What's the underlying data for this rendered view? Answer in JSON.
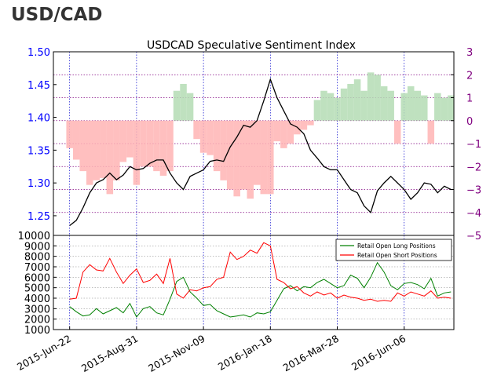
{
  "page_title": "USD/CAD",
  "chart_data": [
    {
      "type": "line",
      "title": "USDCAD Speculative Sentiment Index",
      "x_ticks": [
        "2015-Jun-22",
        "2015-Aug-31",
        "2015-Nov-09",
        "2016-Jan-18",
        "2016-Mar-28",
        "2016-Jun-06"
      ],
      "x_range": [
        "2015-06-05",
        "2016-07-28"
      ],
      "y_left": {
        "label": "",
        "ticks": [
          "1.50",
          "1.45",
          "1.40",
          "1.35",
          "1.30",
          "1.25"
        ],
        "ylim": [
          1.22,
          1.5
        ],
        "color": "#0000ff"
      },
      "y_right": {
        "label": "",
        "ticks": [
          "3",
          "2",
          "1",
          "0",
          "-1",
          "-2",
          "-3",
          "-4",
          "-5"
        ],
        "ylim": [
          -5,
          3
        ],
        "color": "#800080"
      },
      "grid": true,
      "price_series": {
        "name": "",
        "color": "#000000",
        "points": [
          [
            "2015-06-22",
            1.235
          ],
          [
            "2015-06-29",
            1.243
          ],
          [
            "2015-07-06",
            1.262
          ],
          [
            "2015-07-13",
            1.285
          ],
          [
            "2015-07-20",
            1.3
          ],
          [
            "2015-07-27",
            1.305
          ],
          [
            "2015-08-03",
            1.315
          ],
          [
            "2015-08-10",
            1.305
          ],
          [
            "2015-08-17",
            1.312
          ],
          [
            "2015-08-24",
            1.325
          ],
          [
            "2015-08-31",
            1.32
          ],
          [
            "2015-09-07",
            1.322
          ],
          [
            "2015-09-14",
            1.33
          ],
          [
            "2015-09-21",
            1.335
          ],
          [
            "2015-09-28",
            1.335
          ],
          [
            "2015-10-05",
            1.315
          ],
          [
            "2015-10-12",
            1.3
          ],
          [
            "2015-10-19",
            1.29
          ],
          [
            "2015-10-26",
            1.31
          ],
          [
            "2015-11-02",
            1.315
          ],
          [
            "2015-11-09",
            1.32
          ],
          [
            "2015-11-16",
            1.333
          ],
          [
            "2015-11-23",
            1.335
          ],
          [
            "2015-11-30",
            1.333
          ],
          [
            "2015-12-07",
            1.355
          ],
          [
            "2015-12-14",
            1.37
          ],
          [
            "2015-12-21",
            1.388
          ],
          [
            "2015-12-28",
            1.385
          ],
          [
            "2016-01-04",
            1.395
          ],
          [
            "2016-01-11",
            1.425
          ],
          [
            "2016-01-18",
            1.458
          ],
          [
            "2016-01-25",
            1.43
          ],
          [
            "2016-02-01",
            1.41
          ],
          [
            "2016-02-08",
            1.39
          ],
          [
            "2016-02-15",
            1.385
          ],
          [
            "2016-02-22",
            1.375
          ],
          [
            "2016-02-29",
            1.35
          ],
          [
            "2016-03-07",
            1.338
          ],
          [
            "2016-03-14",
            1.325
          ],
          [
            "2016-03-21",
            1.32
          ],
          [
            "2016-03-28",
            1.32
          ],
          [
            "2016-04-04",
            1.305
          ],
          [
            "2016-04-11",
            1.29
          ],
          [
            "2016-04-18",
            1.285
          ],
          [
            "2016-04-25",
            1.265
          ],
          [
            "2016-05-02",
            1.255
          ],
          [
            "2016-05-09",
            1.288
          ],
          [
            "2016-05-16",
            1.3
          ],
          [
            "2016-05-23",
            1.31
          ],
          [
            "2016-05-30",
            1.3
          ],
          [
            "2016-06-06",
            1.29
          ],
          [
            "2016-06-13",
            1.275
          ],
          [
            "2016-06-20",
            1.285
          ],
          [
            "2016-06-27",
            1.3
          ],
          [
            "2016-07-04",
            1.298
          ],
          [
            "2016-07-11",
            1.285
          ],
          [
            "2016-07-18",
            1.295
          ],
          [
            "2016-07-25",
            1.29
          ]
        ]
      },
      "ssi_series": {
        "name": "",
        "colors": {
          "positive": "#b4dcb4",
          "negative": "#ffb4b4"
        },
        "points": [
          [
            "2015-06-22",
            -1.2
          ],
          [
            "2015-06-29",
            -1.7
          ],
          [
            "2015-07-06",
            -2.2
          ],
          [
            "2015-07-13",
            -2.8
          ],
          [
            "2015-07-20",
            -2.6
          ],
          [
            "2015-07-27",
            -2.5
          ],
          [
            "2015-08-03",
            -3.2
          ],
          [
            "2015-08-10",
            -2.6
          ],
          [
            "2015-08-17",
            -1.8
          ],
          [
            "2015-08-24",
            -1.6
          ],
          [
            "2015-08-31",
            -2.8
          ],
          [
            "2015-09-07",
            -2.0
          ],
          [
            "2015-09-14",
            -2.0
          ],
          [
            "2015-09-21",
            -2.2
          ],
          [
            "2015-09-28",
            -2.4
          ],
          [
            "2015-10-05",
            -2.2
          ],
          [
            "2015-10-12",
            1.3
          ],
          [
            "2015-10-19",
            1.6
          ],
          [
            "2015-10-26",
            1.2
          ],
          [
            "2015-11-02",
            -0.8
          ],
          [
            "2015-11-09",
            -1.4
          ],
          [
            "2015-11-16",
            -1.5
          ],
          [
            "2015-11-23",
            -2.2
          ],
          [
            "2015-11-30",
            -2.6
          ],
          [
            "2015-12-07",
            -3.0
          ],
          [
            "2015-12-14",
            -3.3
          ],
          [
            "2015-12-21",
            -3.0
          ],
          [
            "2015-12-28",
            -3.4
          ],
          [
            "2016-01-04",
            -2.8
          ],
          [
            "2016-01-11",
            -3.2
          ],
          [
            "2016-01-18",
            -3.2
          ],
          [
            "2016-01-25",
            -0.9
          ],
          [
            "2016-02-01",
            -1.2
          ],
          [
            "2016-02-08",
            -1.0
          ],
          [
            "2016-02-15",
            -0.6
          ],
          [
            "2016-02-22",
            -0.4
          ],
          [
            "2016-02-29",
            -0.2
          ],
          [
            "2016-03-07",
            0.9
          ],
          [
            "2016-03-14",
            1.3
          ],
          [
            "2016-03-21",
            1.2
          ],
          [
            "2016-03-28",
            1.0
          ],
          [
            "2016-04-04",
            1.4
          ],
          [
            "2016-04-11",
            1.6
          ],
          [
            "2016-04-18",
            1.8
          ],
          [
            "2016-04-25",
            1.3
          ],
          [
            "2016-05-02",
            2.1
          ],
          [
            "2016-05-09",
            2.0
          ],
          [
            "2016-05-16",
            1.5
          ],
          [
            "2016-05-23",
            1.3
          ],
          [
            "2016-05-30",
            -1.0
          ],
          [
            "2016-06-06",
            1.2
          ],
          [
            "2016-06-13",
            1.5
          ],
          [
            "2016-06-20",
            1.3
          ],
          [
            "2016-06-27",
            1.1
          ],
          [
            "2016-07-04",
            -1.0
          ],
          [
            "2016-07-11",
            1.2
          ],
          [
            "2016-07-18",
            1.0
          ],
          [
            "2016-07-25",
            1.1
          ]
        ]
      }
    },
    {
      "type": "line",
      "title": "",
      "x_range": [
        "2015-06-05",
        "2016-07-28"
      ],
      "ylim": [
        1000,
        10000
      ],
      "y_ticks": [
        "10000",
        "9000",
        "8000",
        "7000",
        "6000",
        "5000",
        "4000",
        "3000",
        "2000",
        "1000"
      ],
      "grid": true,
      "legend_position": "top-right",
      "series": [
        {
          "name": "Retail Open Long Positions",
          "color": "#008000",
          "points": [
            [
              "2015-06-22",
              3200
            ],
            [
              "2015-06-29",
              2700
            ],
            [
              "2015-07-06",
              2300
            ],
            [
              "2015-07-13",
              2400
            ],
            [
              "2015-07-20",
              3000
            ],
            [
              "2015-07-27",
              2500
            ],
            [
              "2015-08-03",
              2800
            ],
            [
              "2015-08-10",
              3100
            ],
            [
              "2015-08-17",
              2600
            ],
            [
              "2015-08-24",
              3500
            ],
            [
              "2015-08-31",
              2200
            ],
            [
              "2015-09-07",
              3000
            ],
            [
              "2015-09-14",
              3200
            ],
            [
              "2015-09-21",
              2600
            ],
            [
              "2015-09-28",
              2400
            ],
            [
              "2015-10-05",
              3900
            ],
            [
              "2015-10-12",
              5600
            ],
            [
              "2015-10-19",
              6000
            ],
            [
              "2015-10-26",
              4600
            ],
            [
              "2015-11-02",
              4000
            ],
            [
              "2015-11-09",
              3300
            ],
            [
              "2015-11-16",
              3400
            ],
            [
              "2015-11-23",
              2800
            ],
            [
              "2015-11-30",
              2500
            ],
            [
              "2015-12-07",
              2200
            ],
            [
              "2015-12-14",
              2300
            ],
            [
              "2015-12-21",
              2400
            ],
            [
              "2015-12-28",
              2200
            ],
            [
              "2016-01-04",
              2600
            ],
            [
              "2016-01-11",
              2500
            ],
            [
              "2016-01-18",
              2700
            ],
            [
              "2016-01-25",
              3800
            ],
            [
              "2016-02-01",
              4900
            ],
            [
              "2016-02-08",
              5200
            ],
            [
              "2016-02-15",
              4700
            ],
            [
              "2016-02-22",
              5100
            ],
            [
              "2016-02-29",
              5000
            ],
            [
              "2016-03-07",
              5500
            ],
            [
              "2016-03-14",
              5800
            ],
            [
              "2016-03-21",
              5400
            ],
            [
              "2016-03-28",
              5000
            ],
            [
              "2016-04-04",
              5200
            ],
            [
              "2016-04-11",
              6200
            ],
            [
              "2016-04-18",
              5900
            ],
            [
              "2016-04-25",
              5000
            ],
            [
              "2016-05-02",
              6000
            ],
            [
              "2016-05-09",
              7400
            ],
            [
              "2016-05-16",
              6500
            ],
            [
              "2016-05-23",
              5200
            ],
            [
              "2016-05-30",
              4800
            ],
            [
              "2016-06-06",
              5400
            ],
            [
              "2016-06-13",
              5500
            ],
            [
              "2016-06-20",
              5300
            ],
            [
              "2016-06-27",
              4900
            ],
            [
              "2016-07-04",
              5900
            ],
            [
              "2016-07-11",
              4200
            ],
            [
              "2016-07-18",
              4500
            ],
            [
              "2016-07-25",
              4600
            ]
          ]
        },
        {
          "name": "Retail Open Short Positions",
          "color": "#ff0000",
          "points": [
            [
              "2015-06-22",
              3900
            ],
            [
              "2015-06-29",
              4000
            ],
            [
              "2015-07-06",
              6500
            ],
            [
              "2015-07-13",
              7200
            ],
            [
              "2015-07-20",
              6700
            ],
            [
              "2015-07-27",
              6600
            ],
            [
              "2015-08-03",
              7800
            ],
            [
              "2015-08-10",
              6500
            ],
            [
              "2015-08-17",
              5400
            ],
            [
              "2015-08-24",
              6200
            ],
            [
              "2015-08-31",
              6800
            ],
            [
              "2015-09-07",
              5500
            ],
            [
              "2015-09-14",
              5700
            ],
            [
              "2015-09-21",
              6300
            ],
            [
              "2015-09-28",
              5400
            ],
            [
              "2015-10-05",
              7800
            ],
            [
              "2015-10-12",
              4400
            ],
            [
              "2015-10-19",
              4000
            ],
            [
              "2015-10-26",
              4800
            ],
            [
              "2015-11-02",
              4700
            ],
            [
              "2015-11-09",
              5000
            ],
            [
              "2015-11-16",
              5100
            ],
            [
              "2015-11-23",
              5800
            ],
            [
              "2015-11-30",
              6000
            ],
            [
              "2015-12-07",
              8400
            ],
            [
              "2015-12-14",
              7700
            ],
            [
              "2015-12-21",
              8000
            ],
            [
              "2015-12-28",
              8600
            ],
            [
              "2016-01-04",
              8300
            ],
            [
              "2016-01-11",
              9300
            ],
            [
              "2016-01-18",
              9000
            ],
            [
              "2016-01-25",
              5800
            ],
            [
              "2016-02-01",
              5500
            ],
            [
              "2016-02-08",
              4900
            ],
            [
              "2016-02-15",
              5100
            ],
            [
              "2016-02-22",
              4500
            ],
            [
              "2016-02-29",
              4200
            ],
            [
              "2016-03-07",
              4600
            ],
            [
              "2016-03-14",
              4300
            ],
            [
              "2016-03-21",
              4500
            ],
            [
              "2016-03-28",
              4000
            ],
            [
              "2016-04-04",
              4300
            ],
            [
              "2016-04-11",
              4100
            ],
            [
              "2016-04-18",
              4000
            ],
            [
              "2016-04-25",
              3800
            ],
            [
              "2016-05-02",
              3900
            ],
            [
              "2016-05-09",
              3700
            ],
            [
              "2016-05-16",
              3800
            ],
            [
              "2016-05-23",
              3700
            ],
            [
              "2016-05-30",
              4500
            ],
            [
              "2016-06-06",
              4200
            ],
            [
              "2016-06-13",
              4600
            ],
            [
              "2016-06-20",
              4400
            ],
            [
              "2016-06-27",
              4200
            ],
            [
              "2016-07-04",
              4700
            ],
            [
              "2016-07-11",
              4000
            ],
            [
              "2016-07-18",
              4100
            ],
            [
              "2016-07-25",
              4000
            ]
          ]
        }
      ]
    }
  ]
}
